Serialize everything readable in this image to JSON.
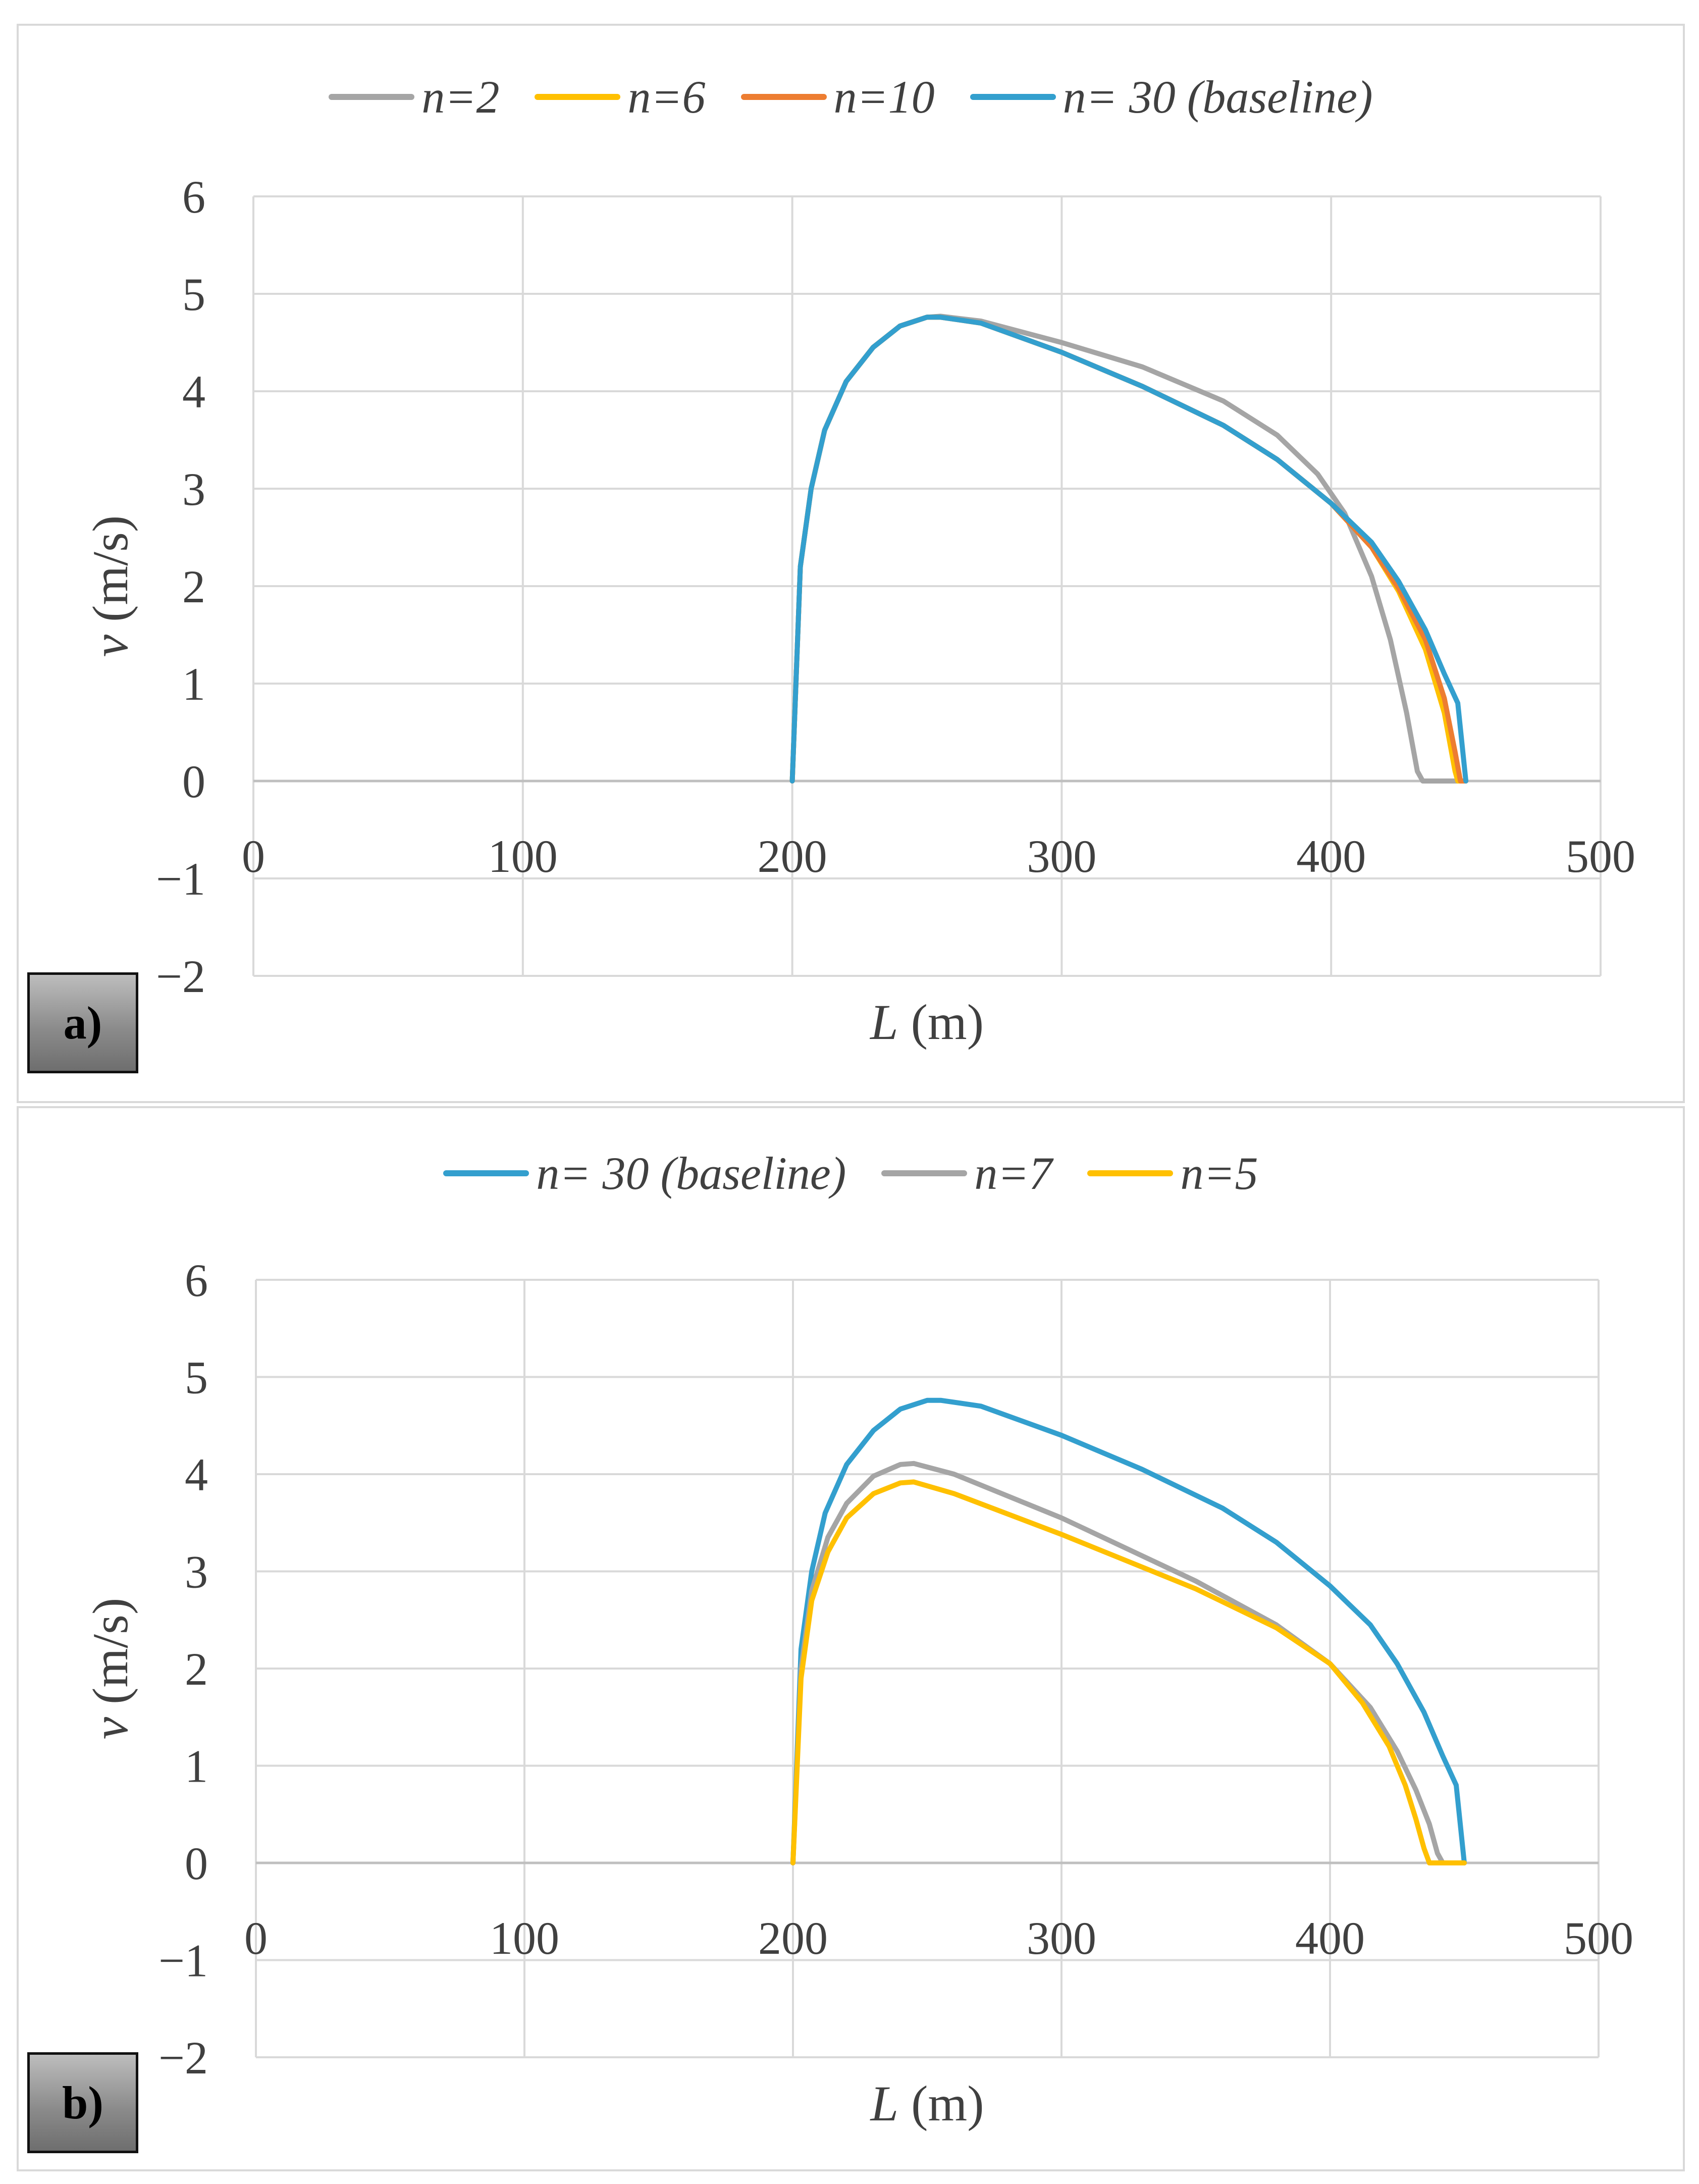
{
  "chart_data": [
    {
      "id": "a",
      "type": "line",
      "panel_label": "a)",
      "xlabel_var": "L",
      "xlabel_unit": "(m)",
      "ylabel_var": "v",
      "ylabel_unit": "(m/s)",
      "xlim": [
        0,
        500
      ],
      "ylim": [
        -2,
        6
      ],
      "xticks": [
        0,
        100,
        200,
        300,
        400,
        500
      ],
      "yticks": [
        -2,
        -1,
        0,
        1,
        2,
        3,
        4,
        5,
        6
      ],
      "ytick_labels": [
        "−2",
        "−1",
        "0",
        "1",
        "2",
        "3",
        "4",
        "5",
        "6"
      ],
      "grid": true,
      "legend_position": "top",
      "series": [
        {
          "name": "n=2",
          "color": "#a5a5a5",
          "x": [
            200,
            203,
            207,
            212,
            220,
            230,
            240,
            250,
            255,
            270,
            300,
            330,
            360,
            380,
            395,
            405,
            415,
            422,
            428,
            432,
            434,
            436,
            450
          ],
          "y": [
            0,
            2.2,
            3.0,
            3.6,
            4.1,
            4.45,
            4.67,
            4.76,
            4.77,
            4.72,
            4.5,
            4.25,
            3.9,
            3.55,
            3.15,
            2.75,
            2.1,
            1.45,
            0.7,
            0.1,
            0,
            0,
            0
          ]
        },
        {
          "name": "n=6",
          "color": "#ffc000",
          "x": [
            200,
            203,
            207,
            212,
            220,
            230,
            240,
            250,
            255,
            270,
            300,
            330,
            360,
            380,
            400,
            415,
            425,
            435,
            442,
            446,
            447,
            450
          ],
          "y": [
            0,
            2.2,
            3.0,
            3.6,
            4.1,
            4.45,
            4.67,
            4.76,
            4.76,
            4.7,
            4.4,
            4.05,
            3.65,
            3.3,
            2.85,
            2.4,
            1.95,
            1.35,
            0.7,
            0.1,
            0,
            0
          ]
        },
        {
          "name": "n=10",
          "color": "#ed7d31",
          "x": [
            200,
            203,
            207,
            212,
            220,
            230,
            240,
            250,
            255,
            270,
            300,
            330,
            360,
            380,
            400,
            415,
            425,
            435,
            442,
            446,
            448,
            450
          ],
          "y": [
            0,
            2.2,
            3.0,
            3.6,
            4.1,
            4.45,
            4.67,
            4.76,
            4.76,
            4.7,
            4.4,
            4.05,
            3.65,
            3.3,
            2.85,
            2.4,
            1.98,
            1.45,
            0.85,
            0.3,
            0,
            0
          ]
        },
        {
          "name": "n= 30 (baseline)",
          "color": "#339fce",
          "x": [
            200,
            203,
            207,
            212,
            220,
            230,
            240,
            250,
            255,
            270,
            300,
            330,
            360,
            380,
            400,
            415,
            425,
            435,
            442,
            447,
            450
          ],
          "y": [
            0,
            2.2,
            3.0,
            3.6,
            4.1,
            4.45,
            4.67,
            4.76,
            4.76,
            4.7,
            4.4,
            4.05,
            3.65,
            3.3,
            2.85,
            2.45,
            2.05,
            1.55,
            1.1,
            0.8,
            0
          ]
        }
      ]
    },
    {
      "id": "b",
      "type": "line",
      "panel_label": "b)",
      "xlabel_var": "L",
      "xlabel_unit": "(m)",
      "ylabel_var": "v",
      "ylabel_unit": "(m/s)",
      "xlim": [
        0,
        500
      ],
      "ylim": [
        -2,
        6
      ],
      "xticks": [
        0,
        100,
        200,
        300,
        400,
        500
      ],
      "yticks": [
        -2,
        -1,
        0,
        1,
        2,
        3,
        4,
        5,
        6
      ],
      "ytick_labels": [
        "−2",
        "−1",
        "0",
        "1",
        "2",
        "3",
        "4",
        "5",
        "6"
      ],
      "grid": true,
      "legend_position": "top",
      "series": [
        {
          "name": "n= 30 (baseline)",
          "color": "#339fce",
          "x": [
            200,
            203,
            207,
            212,
            220,
            230,
            240,
            250,
            255,
            270,
            300,
            330,
            360,
            380,
            400,
            415,
            425,
            435,
            442,
            447,
            450
          ],
          "y": [
            0,
            2.2,
            3.0,
            3.6,
            4.1,
            4.45,
            4.67,
            4.76,
            4.76,
            4.7,
            4.4,
            4.05,
            3.65,
            3.3,
            2.85,
            2.45,
            2.05,
            1.55,
            1.1,
            0.8,
            0
          ]
        },
        {
          "name": "n=7",
          "color": "#a5a5a5",
          "x": [
            200,
            203,
            207,
            213,
            220,
            230,
            240,
            245,
            260,
            300,
            350,
            380,
            400,
            415,
            425,
            432,
            437,
            440,
            442,
            450
          ],
          "y": [
            0,
            2.0,
            2.8,
            3.35,
            3.7,
            3.98,
            4.1,
            4.11,
            4.0,
            3.55,
            2.9,
            2.45,
            2.05,
            1.6,
            1.15,
            0.75,
            0.4,
            0.1,
            0,
            0
          ]
        },
        {
          "name": "n=5",
          "color": "#ffc000",
          "x": [
            200,
            203,
            207,
            213,
            220,
            230,
            240,
            245,
            260,
            300,
            350,
            380,
            400,
            412,
            422,
            428,
            432,
            435,
            437,
            450
          ],
          "y": [
            0,
            1.9,
            2.7,
            3.2,
            3.55,
            3.8,
            3.91,
            3.92,
            3.8,
            3.38,
            2.82,
            2.42,
            2.05,
            1.65,
            1.2,
            0.8,
            0.45,
            0.15,
            0,
            0
          ]
        }
      ]
    }
  ]
}
